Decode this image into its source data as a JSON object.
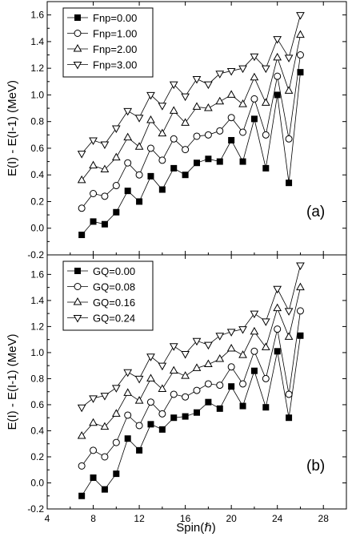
{
  "chart_data": [
    {
      "type": "line",
      "panel_label": "(a)",
      "ylabel": "E(I) - E(I-1) (MeV)",
      "xlabel": "",
      "xlim": [
        4,
        30
      ],
      "ylim": [
        -0.2,
        1.7
      ],
      "xticks": [
        4,
        8,
        12,
        16,
        20,
        24,
        28
      ],
      "yticks": [
        -0.2,
        0.0,
        0.2,
        0.4,
        0.6,
        0.8,
        1.0,
        1.2,
        1.4,
        1.6
      ],
      "ytick_labels": [
        "-0.2",
        "0.0",
        "0.2",
        "0.4",
        "0.6",
        "0.8",
        "1.0",
        "1.2",
        "1.4",
        "1.6"
      ],
      "legend_position": "top-left",
      "x": [
        7,
        8,
        9,
        10,
        11,
        12,
        13,
        14,
        15,
        16,
        17,
        18,
        19,
        20,
        21,
        22,
        23,
        24,
        25,
        26
      ],
      "series": [
        {
          "name": "Fnp=0.00",
          "marker": "square-filled",
          "values": [
            -0.05,
            0.05,
            0.03,
            0.12,
            0.28,
            0.2,
            0.39,
            0.29,
            0.45,
            0.4,
            0.49,
            0.52,
            0.5,
            0.66,
            0.5,
            0.82,
            0.45,
            1.0,
            0.34,
            1.17
          ]
        },
        {
          "name": "Fnp=1.00",
          "marker": "circle-open",
          "values": [
            0.15,
            0.26,
            0.24,
            0.32,
            0.49,
            0.4,
            0.6,
            0.51,
            0.67,
            0.59,
            0.69,
            0.7,
            0.73,
            0.83,
            0.72,
            0.97,
            0.7,
            1.14,
            0.67,
            1.3
          ]
        },
        {
          "name": "Fnp=2.00",
          "marker": "triangle-up-open",
          "values": [
            0.36,
            0.47,
            0.44,
            0.53,
            0.68,
            0.61,
            0.81,
            0.71,
            0.88,
            0.79,
            0.91,
            0.9,
            0.95,
            1.0,
            0.93,
            1.13,
            0.94,
            1.28,
            1.03,
            1.45
          ]
        },
        {
          "name": "Fnp=3.00",
          "marker": "triangle-down-open",
          "values": [
            0.56,
            0.66,
            0.63,
            0.75,
            0.88,
            0.83,
            1.0,
            0.92,
            1.08,
            0.99,
            1.12,
            1.08,
            1.16,
            1.18,
            1.2,
            1.29,
            1.2,
            1.42,
            1.28,
            1.6
          ]
        }
      ]
    },
    {
      "type": "line",
      "panel_label": "(b)",
      "ylabel": "E(I) - E(I-1) (MeV)",
      "xlabel": "Spin(ℏ)",
      "xlim": [
        4,
        30
      ],
      "ylim": [
        -0.2,
        1.75
      ],
      "xticks": [
        4,
        8,
        12,
        16,
        20,
        24,
        28
      ],
      "yticks": [
        -0.2,
        0.0,
        0.2,
        0.4,
        0.6,
        0.8,
        1.0,
        1.2,
        1.4,
        1.6
      ],
      "ytick_labels": [
        "-0.2",
        "0.0",
        "0.2",
        "0.4",
        "0.6",
        "0.8",
        "1.0",
        "1.2",
        "1.4",
        "1.6"
      ],
      "legend_position": "top-left",
      "x": [
        7,
        8,
        9,
        10,
        11,
        12,
        13,
        14,
        15,
        16,
        17,
        18,
        19,
        20,
        21,
        22,
        23,
        24,
        25,
        26
      ],
      "series": [
        {
          "name": "GQ=0.00",
          "marker": "square-filled",
          "values": [
            -0.1,
            0.04,
            -0.05,
            0.07,
            0.34,
            0.25,
            0.45,
            0.41,
            0.5,
            0.51,
            0.54,
            0.62,
            0.57,
            0.74,
            0.59,
            0.86,
            0.58,
            1.01,
            0.5,
            1.13
          ]
        },
        {
          "name": "GQ=0.08",
          "marker": "circle-open",
          "values": [
            0.13,
            0.25,
            0.2,
            0.31,
            0.52,
            0.44,
            0.62,
            0.53,
            0.68,
            0.66,
            0.71,
            0.76,
            0.75,
            0.89,
            0.76,
            1.01,
            0.8,
            1.18,
            0.68,
            1.32
          ]
        },
        {
          "name": "GQ=0.16",
          "marker": "triangle-up-open",
          "values": [
            0.36,
            0.46,
            0.43,
            0.53,
            0.69,
            0.63,
            0.8,
            0.72,
            0.86,
            0.82,
            0.88,
            0.91,
            0.95,
            1.03,
            0.98,
            1.16,
            1.04,
            1.34,
            1.12,
            1.5
          ]
        },
        {
          "name": "GQ=0.24",
          "marker": "triangle-down-open",
          "values": [
            0.58,
            0.65,
            0.67,
            0.73,
            0.85,
            0.8,
            0.97,
            0.9,
            1.05,
            0.99,
            1.09,
            1.06,
            1.13,
            1.16,
            1.18,
            1.3,
            1.24,
            1.49,
            1.32,
            1.67
          ]
        }
      ]
    }
  ]
}
